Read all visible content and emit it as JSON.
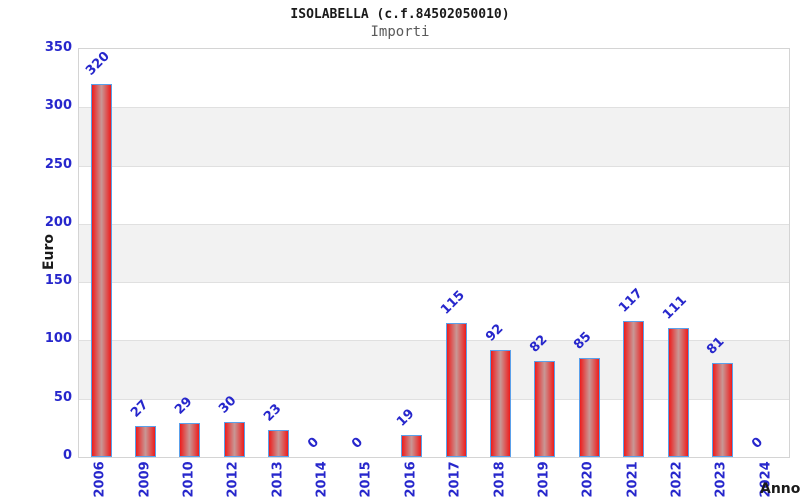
{
  "title": "ISOLABELLA (c.f.84502050010)",
  "subtitle": "Importi",
  "axes": {
    "y_label": "Euro",
    "x_label": "Anno"
  },
  "chart_data": {
    "type": "bar",
    "title": "ISOLABELLA (c.f.84502050010)",
    "subtitle": "Importi",
    "xlabel": "Anno",
    "ylabel": "Euro",
    "categories": [
      "2006",
      "2009",
      "2010",
      "2012",
      "2013",
      "2014",
      "2015",
      "2016",
      "2017",
      "2018",
      "2019",
      "2020",
      "2021",
      "2022",
      "2023",
      "2024"
    ],
    "values": [
      320,
      27,
      29,
      30,
      23,
      0,
      0,
      19,
      115,
      92,
      82,
      85,
      117,
      111,
      81,
      0
    ],
    "ylim": [
      0,
      350
    ],
    "ytick_step": 50,
    "ytick_labels": [
      "0",
      "50",
      "100",
      "150",
      "200",
      "250",
      "300",
      "350"
    ],
    "grid": true,
    "legend": null,
    "bands": [
      [
        50,
        100
      ],
      [
        150,
        200
      ],
      [
        250,
        300
      ]
    ],
    "colors": {
      "bar_fill_edge": "#ee1c1c",
      "bar_fill_mid": "#c89896",
      "bar_border": "#5aa0ea",
      "tick_text": "#2727cc",
      "value_text": "#2727cc",
      "band_fill": "#f2f2f2",
      "gridline": "#e0e0e0",
      "plot_border": "#d4d4d4",
      "title_text": "#1a1a1a",
      "subtitle_text": "#5a5a5a"
    }
  }
}
